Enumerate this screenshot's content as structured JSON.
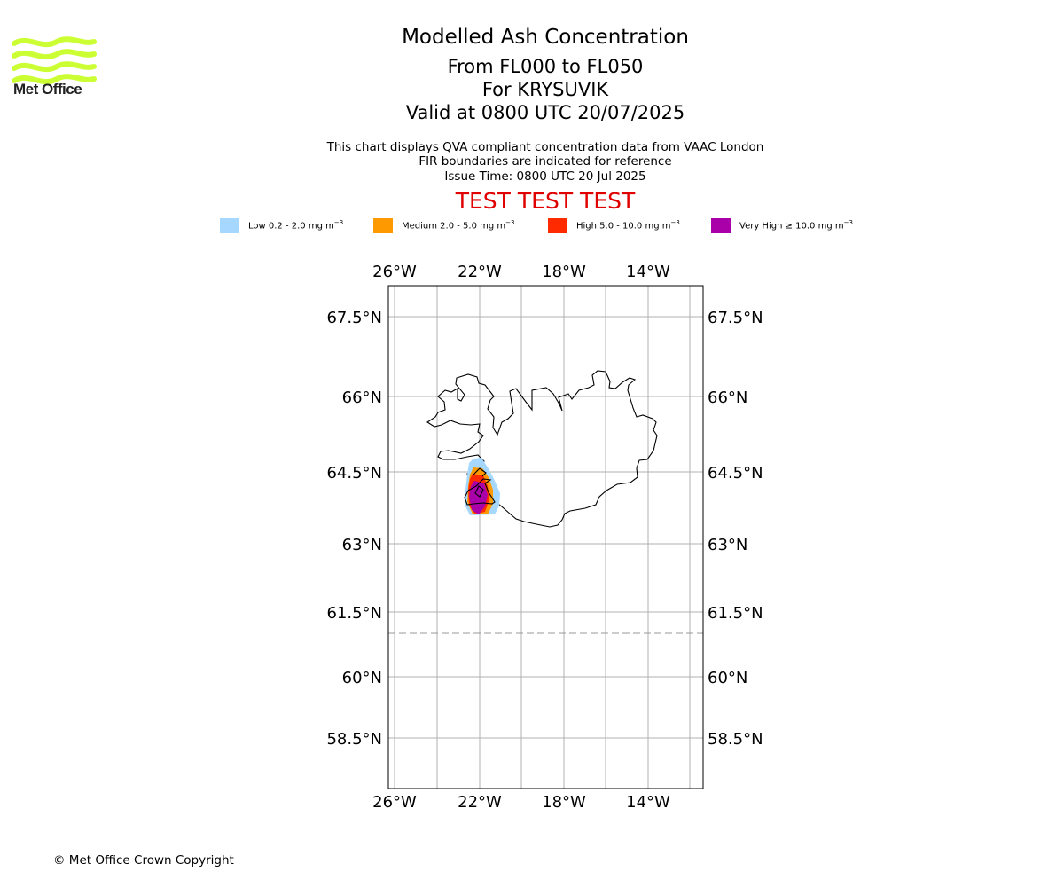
{
  "brand": {
    "name": "Met Office",
    "color": "#ccff33"
  },
  "titles": {
    "main": "Modelled Ash Concentration",
    "levels": "From FL000 to FL050",
    "location": "For KRYSUVIK",
    "valid": "Valid at 0800 UTC 20/07/2025"
  },
  "subtitles": [
    "This chart displays QVA compliant concentration data from VAAC London",
    "FIR boundaries are indicated for reference",
    "Issue Time: 0800 UTC 20 Jul 2025"
  ],
  "test_banner": {
    "text": "TEST TEST TEST",
    "color": "#e00000"
  },
  "legend": [
    {
      "label": "Low 0.2 - 2.0 mg m",
      "unit_exp": "−3",
      "color": "#a6d8ff"
    },
    {
      "label": "Medium 2.0 - 5.0 mg m",
      "unit_exp": "−3",
      "color": "#ff9900"
    },
    {
      "label": "High 5.0 - 10.0 mg m",
      "unit_exp": "−3",
      "color": "#ff2a00"
    },
    {
      "label": "Very High  ≥  10.0 mg m",
      "unit_exp": "−3",
      "color": "#aa00aa"
    }
  ],
  "map": {
    "lon_ticks": [
      "26°W",
      "22°W",
      "18°W",
      "14°W"
    ],
    "lat_ticks": [
      "67.5°N",
      "66°N",
      "64.5°N",
      "63°N",
      "61.5°N",
      "60°N",
      "58.5°N"
    ],
    "fir_boundary_lat": 61,
    "source_volcano": "KRYSUVIK"
  },
  "copyright": "© Met Office Crown Copyright"
}
